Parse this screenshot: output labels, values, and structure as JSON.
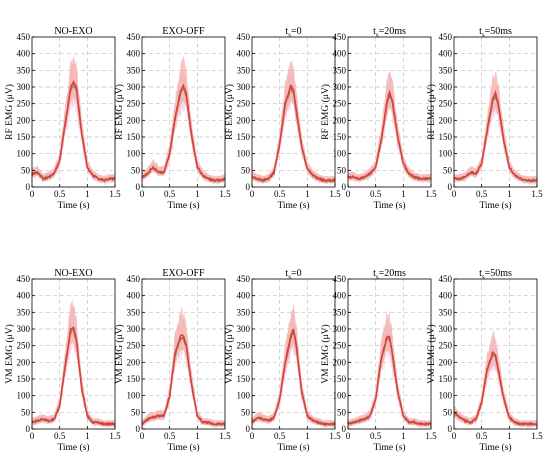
{
  "chart_data": [
    {
      "type": "line",
      "row": "RF",
      "title": "NO-EXO",
      "title_sub": "",
      "ylabel": "RF EMG (μV)",
      "xlabel": "Time (s)",
      "xlim": [
        0,
        1.5
      ],
      "ylim": [
        0,
        450
      ],
      "x_ticks": [
        "0",
        "0.5",
        "1",
        "1.5"
      ],
      "y_ticks": [
        "0",
        "50",
        "100",
        "150",
        "200",
        "250",
        "300",
        "350",
        "400",
        "450"
      ],
      "grid": "dashed",
      "series": [
        {
          "x": [
            0,
            0.1,
            0.2,
            0.3,
            0.4,
            0.5,
            0.6,
            0.7,
            0.75,
            0.8,
            0.9,
            1.0,
            1.1,
            1.2,
            1.3,
            1.4,
            1.5
          ],
          "values": [
            40,
            45,
            25,
            30,
            40,
            80,
            190,
            300,
            315,
            300,
            160,
            60,
            35,
            25,
            20,
            25,
            25
          ]
        }
      ]
    },
    {
      "type": "line",
      "row": "RF",
      "title": "EXO-OFF",
      "title_sub": "",
      "ylabel": "RF EMG (μV)",
      "xlabel": "Time (s)",
      "xlim": [
        0,
        1.5
      ],
      "ylim": [
        0,
        450
      ],
      "x_ticks": [
        "0",
        "0.5",
        "1",
        "1.5"
      ],
      "y_ticks": [
        "0",
        "50",
        "100",
        "150",
        "200",
        "250",
        "300",
        "350",
        "400",
        "450"
      ],
      "grid": "dashed",
      "series": [
        {
          "x": [
            0,
            0.1,
            0.2,
            0.3,
            0.4,
            0.5,
            0.6,
            0.7,
            0.75,
            0.8,
            0.9,
            1.0,
            1.1,
            1.2,
            1.3,
            1.4,
            1.5
          ],
          "values": [
            30,
            40,
            60,
            45,
            45,
            100,
            210,
            290,
            305,
            280,
            150,
            60,
            35,
            25,
            20,
            20,
            25
          ]
        }
      ]
    },
    {
      "type": "line",
      "row": "RF",
      "title": "t",
      "title_sub": "s",
      "title_suffix": "=0",
      "ylabel": "RF EMG (μV)",
      "xlabel": "Time (s)",
      "xlim": [
        0,
        1.5
      ],
      "ylim": [
        0,
        450
      ],
      "x_ticks": [
        "0",
        "0.5",
        "1",
        "1.5"
      ],
      "y_ticks": [
        "0",
        "50",
        "100",
        "150",
        "200",
        "250",
        "300",
        "350",
        "400",
        "450"
      ],
      "grid": "dashed",
      "series": [
        {
          "x": [
            0,
            0.1,
            0.2,
            0.3,
            0.4,
            0.5,
            0.6,
            0.7,
            0.75,
            0.8,
            0.9,
            1.0,
            1.1,
            1.2,
            1.3,
            1.4,
            1.5
          ],
          "values": [
            30,
            25,
            20,
            25,
            45,
            130,
            250,
            305,
            290,
            230,
            120,
            55,
            35,
            25,
            20,
            20,
            20
          ]
        }
      ]
    },
    {
      "type": "line",
      "row": "RF",
      "title": "t",
      "title_sub": "s",
      "title_suffix": "=20ms",
      "ylabel": "RF EMG (μV)",
      "xlabel": "Time (s)",
      "xlim": [
        0,
        1.5
      ],
      "ylim": [
        0,
        450
      ],
      "x_ticks": [
        "0",
        "0.5",
        "1",
        "1.5"
      ],
      "y_ticks": [
        "0",
        "50",
        "100",
        "150",
        "200",
        "250",
        "300",
        "350",
        "400",
        "450"
      ],
      "grid": "dashed",
      "series": [
        {
          "x": [
            0,
            0.1,
            0.2,
            0.3,
            0.4,
            0.5,
            0.6,
            0.7,
            0.75,
            0.8,
            0.9,
            1.0,
            1.1,
            1.2,
            1.3,
            1.4,
            1.5
          ],
          "values": [
            30,
            30,
            25,
            30,
            40,
            60,
            140,
            250,
            285,
            260,
            150,
            70,
            40,
            30,
            25,
            25,
            25
          ]
        }
      ]
    },
    {
      "type": "line",
      "row": "RF",
      "title": "t",
      "title_sub": "s",
      "title_suffix": "=50ms",
      "ylabel": "RF EMG (μV)",
      "xlabel": "Time (s)",
      "xlim": [
        0,
        1.5
      ],
      "ylim": [
        0,
        450
      ],
      "x_ticks": [
        "0",
        "0.5",
        "1",
        "1.5"
      ],
      "y_ticks": [
        "0",
        "50",
        "100",
        "150",
        "200",
        "250",
        "300",
        "350",
        "400",
        "450"
      ],
      "grid": "dashed",
      "series": [
        {
          "x": [
            0,
            0.1,
            0.2,
            0.3,
            0.4,
            0.5,
            0.6,
            0.7,
            0.75,
            0.8,
            0.9,
            1.0,
            1.1,
            1.2,
            1.3,
            1.4,
            1.5
          ],
          "values": [
            25,
            25,
            30,
            45,
            40,
            70,
            170,
            265,
            280,
            250,
            140,
            60,
            35,
            25,
            20,
            20,
            20
          ]
        }
      ]
    },
    {
      "type": "line",
      "row": "VM",
      "title": "NO-EXO",
      "title_sub": "",
      "ylabel": "VM EMG (μV)",
      "xlabel": "Time (s)",
      "xlim": [
        0,
        1.5
      ],
      "ylim": [
        0,
        450
      ],
      "x_ticks": [
        "0",
        "0.5",
        "1",
        "1.5"
      ],
      "y_ticks": [
        "0",
        "50",
        "100",
        "150",
        "200",
        "250",
        "300",
        "350",
        "400",
        "450"
      ],
      "grid": "dashed",
      "series": [
        {
          "x": [
            0,
            0.1,
            0.2,
            0.3,
            0.4,
            0.5,
            0.6,
            0.7,
            0.75,
            0.8,
            0.9,
            1.0,
            1.1,
            1.2,
            1.3,
            1.4,
            1.5
          ],
          "values": [
            20,
            25,
            30,
            25,
            30,
            70,
            190,
            300,
            305,
            270,
            120,
            40,
            20,
            20,
            15,
            15,
            15
          ]
        }
      ]
    },
    {
      "type": "line",
      "row": "VM",
      "title": "EXO-OFF",
      "title_sub": "",
      "ylabel": "VM EMG (μV)",
      "xlabel": "Time (s)",
      "xlim": [
        0,
        1.5
      ],
      "ylim": [
        0,
        450
      ],
      "x_ticks": [
        "0",
        "0.5",
        "1",
        "1.5"
      ],
      "y_ticks": [
        "0",
        "50",
        "100",
        "150",
        "200",
        "250",
        "300",
        "350",
        "400",
        "450"
      ],
      "grid": "dashed",
      "series": [
        {
          "x": [
            0,
            0.1,
            0.2,
            0.3,
            0.4,
            0.5,
            0.6,
            0.7,
            0.75,
            0.8,
            0.9,
            1.0,
            1.1,
            1.2,
            1.3,
            1.4,
            1.5
          ],
          "values": [
            15,
            30,
            35,
            40,
            40,
            100,
            230,
            280,
            280,
            250,
            130,
            40,
            20,
            20,
            15,
            15,
            15
          ]
        }
      ]
    },
    {
      "type": "line",
      "row": "VM",
      "title": "t",
      "title_sub": "s",
      "title_suffix": "=0",
      "ylabel": "VM EMG (μV)",
      "xlabel": "Time (s)",
      "xlim": [
        0,
        1.5
      ],
      "ylim": [
        0,
        450
      ],
      "x_ticks": [
        "0",
        "0.5",
        "1",
        "1.5"
      ],
      "y_ticks": [
        "0",
        "50",
        "100",
        "150",
        "200",
        "250",
        "300",
        "350",
        "400",
        "450"
      ],
      "grid": "dashed",
      "series": [
        {
          "x": [
            0,
            0.1,
            0.2,
            0.3,
            0.4,
            0.5,
            0.6,
            0.7,
            0.75,
            0.8,
            0.9,
            1.0,
            1.1,
            1.2,
            1.3,
            1.4,
            1.5
          ],
          "values": [
            20,
            35,
            30,
            25,
            35,
            90,
            200,
            280,
            300,
            250,
            110,
            40,
            25,
            20,
            15,
            15,
            15
          ]
        }
      ]
    },
    {
      "type": "line",
      "row": "VM",
      "title": "t",
      "title_sub": "s",
      "title_suffix": "=20ms",
      "ylabel": "VM EMG (μV)",
      "xlabel": "Time (s)",
      "xlim": [
        0,
        1.5
      ],
      "ylim": [
        0,
        450
      ],
      "x_ticks": [
        "0",
        "0.5",
        "1",
        "1.5"
      ],
      "y_ticks": [
        "0",
        "50",
        "100",
        "150",
        "200",
        "250",
        "300",
        "350",
        "400",
        "450"
      ],
      "grid": "dashed",
      "series": [
        {
          "x": [
            0,
            0.1,
            0.2,
            0.3,
            0.4,
            0.5,
            0.6,
            0.7,
            0.75,
            0.8,
            0.9,
            1.0,
            1.1,
            1.2,
            1.3,
            1.4,
            1.5
          ],
          "values": [
            15,
            20,
            25,
            30,
            40,
            90,
            210,
            275,
            275,
            230,
            110,
            40,
            20,
            20,
            15,
            15,
            15
          ]
        }
      ]
    },
    {
      "type": "line",
      "row": "VM",
      "title": "t",
      "title_sub": "s",
      "title_suffix": "=50ms",
      "ylabel": "VM EMG (μV)",
      "xlabel": "Time (s)",
      "xlim": [
        0,
        1.5
      ],
      "ylim": [
        0,
        450
      ],
      "x_ticks": [
        "0",
        "0.5",
        "1",
        "1.5"
      ],
      "y_ticks": [
        "0",
        "50",
        "100",
        "150",
        "200",
        "250",
        "300",
        "350",
        "400",
        "450"
      ],
      "grid": "dashed",
      "series": [
        {
          "x": [
            0,
            0.1,
            0.2,
            0.3,
            0.4,
            0.5,
            0.6,
            0.7,
            0.75,
            0.8,
            0.9,
            1.0,
            1.1,
            1.2,
            1.3,
            1.4,
            1.5
          ],
          "values": [
            50,
            35,
            25,
            20,
            30,
            80,
            180,
            230,
            220,
            180,
            90,
            35,
            20,
            15,
            15,
            15,
            15
          ]
        }
      ]
    }
  ],
  "colors": {
    "mean_line": "#d8403a",
    "sd_band": "#f2b0aa",
    "trial_traces": "#f7cdea",
    "overlay": "#7a7a3a",
    "grid": "#c4c4c4",
    "axis": "#000000"
  }
}
